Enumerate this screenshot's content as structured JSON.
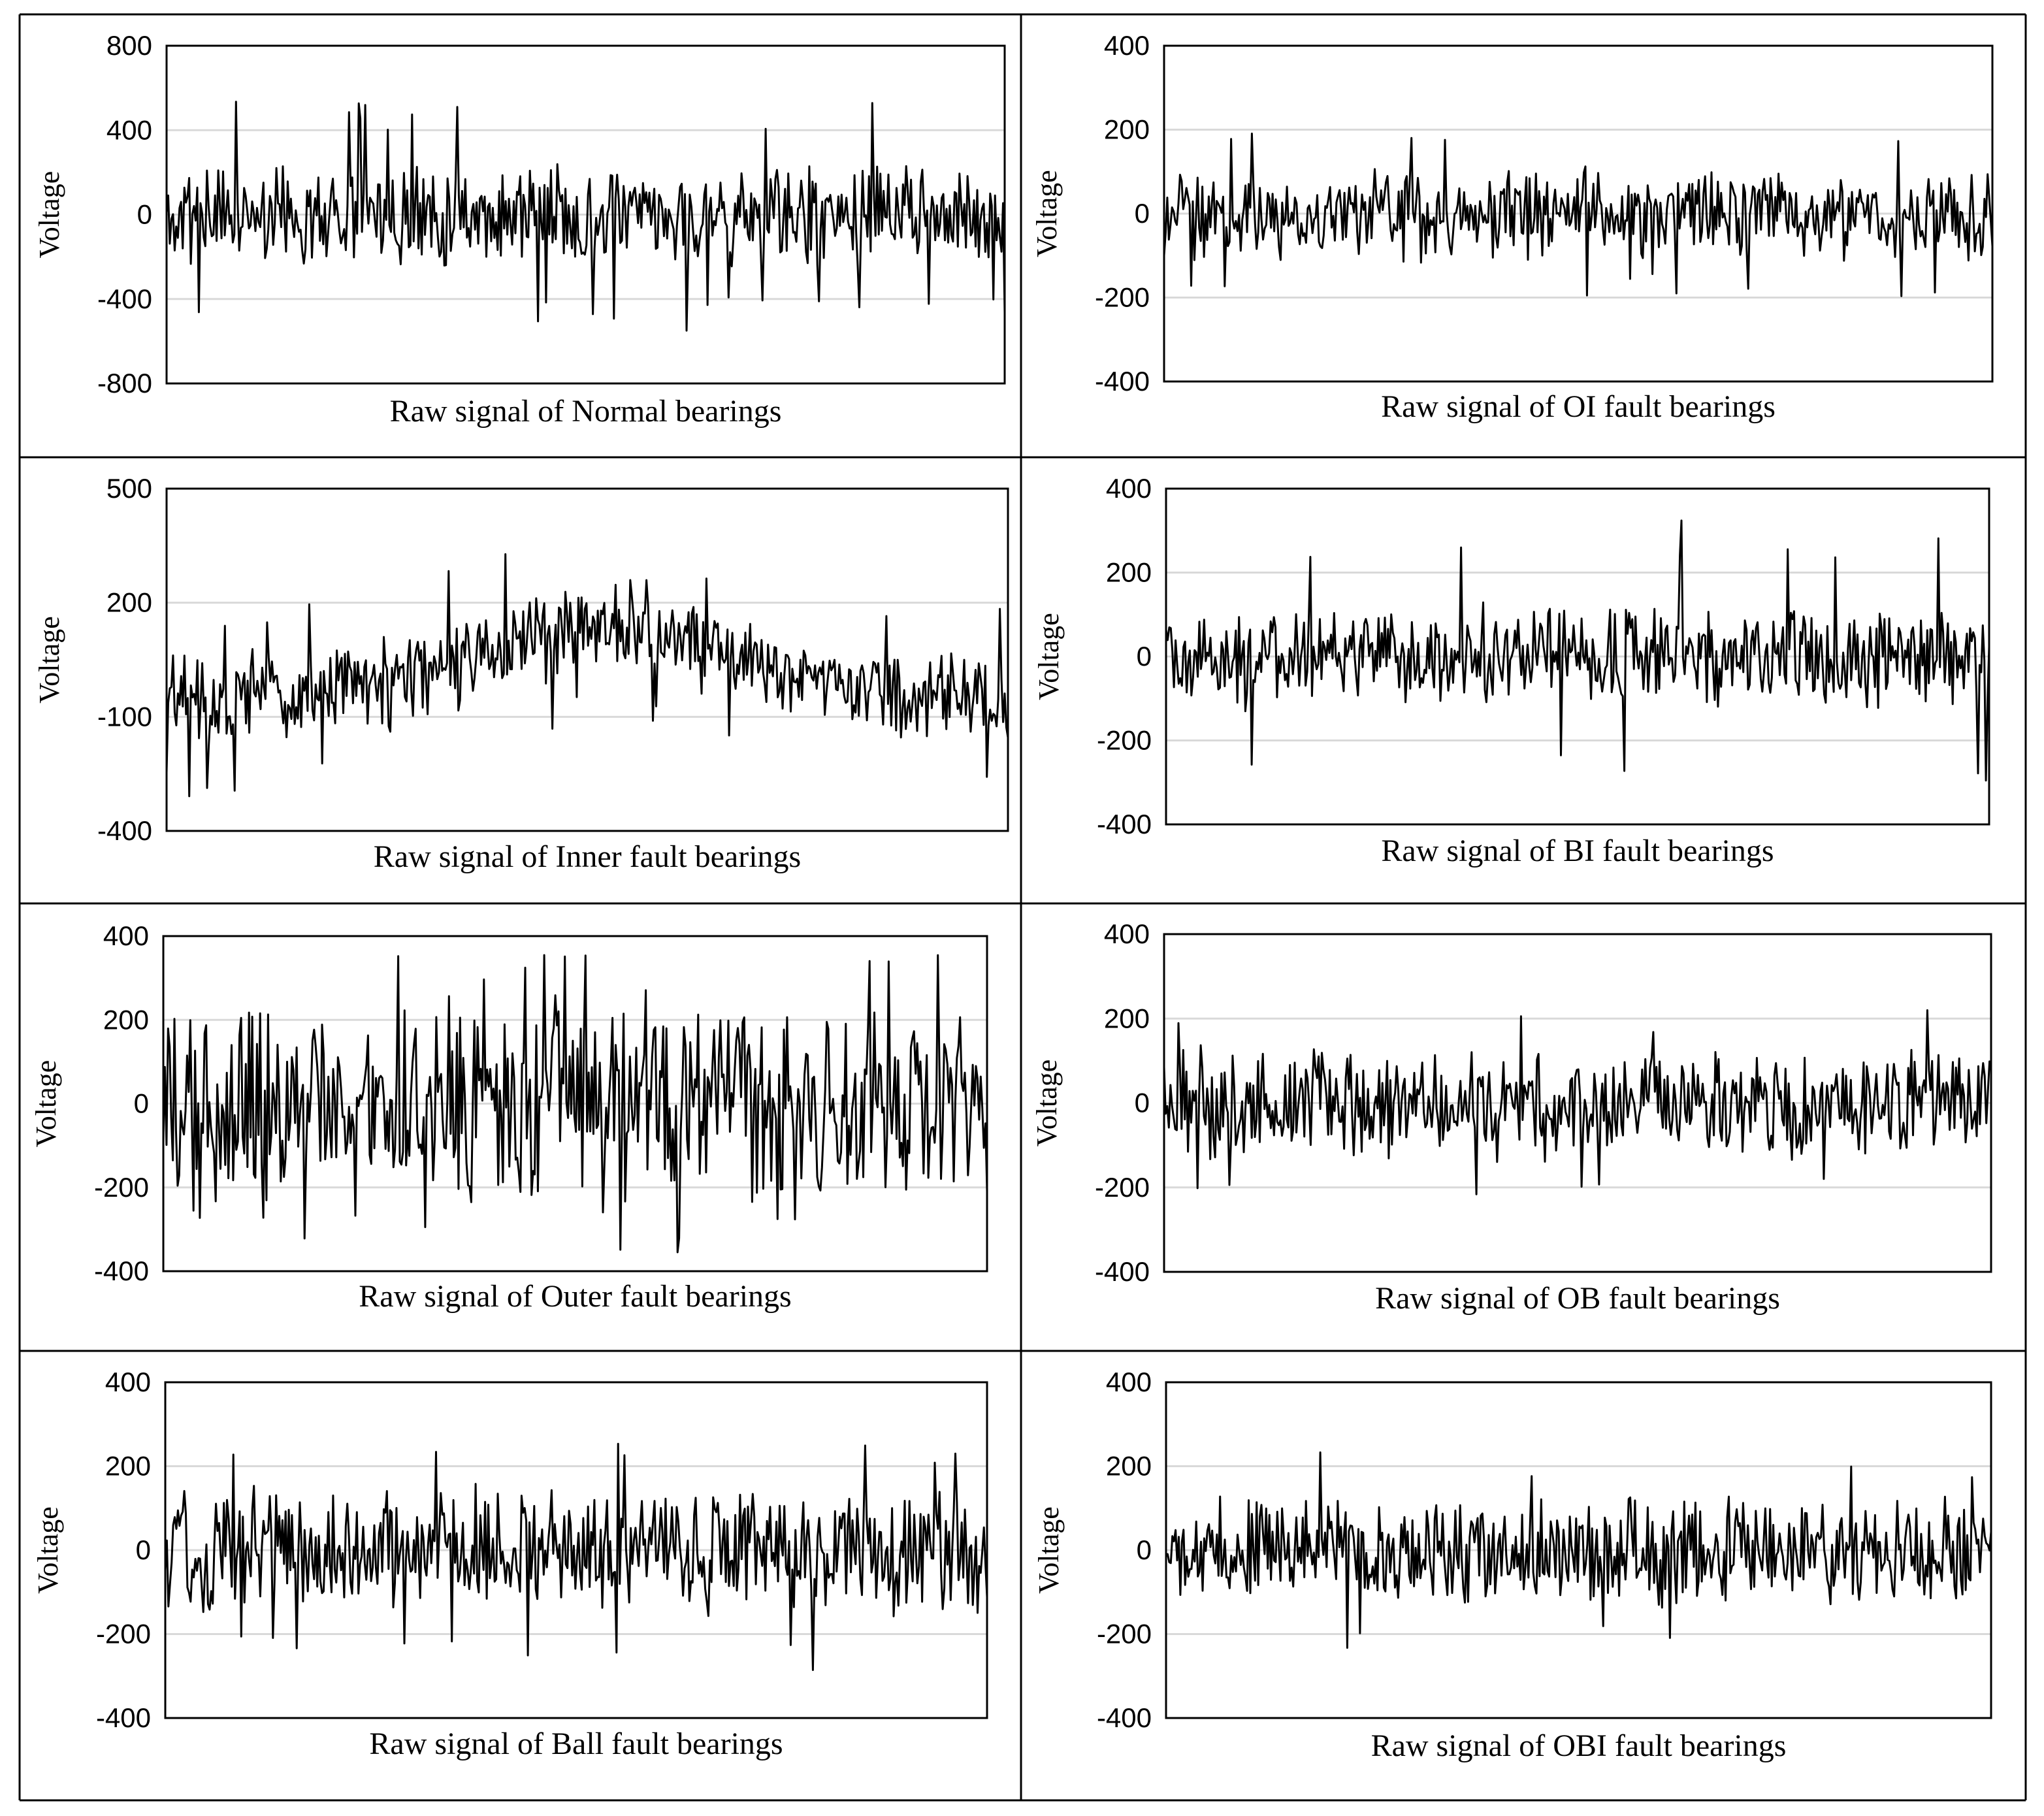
{
  "figure": {
    "background": "#ffffff",
    "line_color": "#000000",
    "grid_color": "#d9d9d9"
  },
  "chart_data": [
    {
      "type": "line",
      "title": "Raw signal of Normal bearings",
      "xlabel": "",
      "ylabel": "Voltage",
      "ylim": [
        -800,
        800
      ],
      "yticks": [
        -800,
        -400,
        0,
        400,
        800
      ],
      "ytick_labels": [
        "-800",
        "-400",
        "0",
        "400",
        "800"
      ],
      "grid": true,
      "n_points": 520,
      "amplitude": 170,
      "spikes": 28,
      "spike_amp": 560,
      "trend": "flat",
      "seed": 11
    },
    {
      "type": "line",
      "title": "Raw signal of OI fault bearings",
      "xlabel": "",
      "ylabel": "Voltage",
      "ylim": [
        -400,
        400
      ],
      "yticks": [
        -400,
        -200,
        0,
        200,
        400
      ],
      "ytick_labels": [
        "-400",
        "-200",
        "0",
        "200",
        "400"
      ],
      "grid": true,
      "n_points": 520,
      "amplitude": 80,
      "spikes": 10,
      "spike_amp": 200,
      "trend": "flat",
      "seed": 23
    },
    {
      "type": "line",
      "title": "Raw signal of Inner fault bearings",
      "xlabel": "",
      "ylabel": "Voltage",
      "ylim": [
        -400,
        500
      ],
      "yticks": [
        -400,
        -100,
        200,
        500
      ],
      "ytick_labels": [
        "-400",
        "-100",
        "200",
        "500"
      ],
      "grid": true,
      "n_points": 520,
      "amplitude": 90,
      "spikes": 14,
      "spike_amp": 260,
      "trend": "hump",
      "trend_base": -50,
      "trend_peak": 140,
      "seed": 37
    },
    {
      "type": "line",
      "title": "Raw signal of BI fault bearings",
      "xlabel": "",
      "ylabel": "Voltage",
      "ylim": [
        -400,
        400
      ],
      "yticks": [
        -400,
        -200,
        0,
        200,
        400
      ],
      "ytick_labels": [
        "-400",
        "-200",
        "0",
        "200",
        "400"
      ],
      "grid": true,
      "n_points": 520,
      "amplitude": 90,
      "spikes": 16,
      "spike_amp": 330,
      "trend": "flat",
      "seed": 41
    },
    {
      "type": "line",
      "title": "Raw signal of Outer fault bearings",
      "xlabel": "",
      "ylabel": "Voltage",
      "ylim": [
        -400,
        400
      ],
      "yticks": [
        -400,
        -200,
        0,
        200,
        400
      ],
      "ytick_labels": [
        "-400",
        "-200",
        "0",
        "200",
        "400"
      ],
      "grid": true,
      "n_points": 520,
      "amplitude": 170,
      "spikes": 18,
      "spike_amp": 360,
      "trend": "flat",
      "seed": 53
    },
    {
      "type": "line",
      "title": "Raw signal of OB fault bearings",
      "xlabel": "",
      "ylabel": "Voltage",
      "ylim": [
        -400,
        400
      ],
      "yticks": [
        -400,
        -200,
        0,
        200,
        400
      ],
      "ytick_labels": [
        "-400",
        "-200",
        "0",
        "200",
        "400"
      ],
      "grid": true,
      "n_points": 520,
      "amplitude": 95,
      "spikes": 10,
      "spike_amp": 220,
      "trend": "flat",
      "seed": 67
    },
    {
      "type": "line",
      "title": "Raw signal of Ball fault bearings",
      "xlabel": "",
      "ylabel": "Voltage",
      "ylim": [
        -400,
        400
      ],
      "yticks": [
        -400,
        -200,
        0,
        200,
        400
      ],
      "ytick_labels": [
        "-400",
        "-200",
        "0",
        "200",
        "400"
      ],
      "grid": true,
      "n_points": 520,
      "amplitude": 110,
      "spikes": 12,
      "spike_amp": 290,
      "trend": "flat",
      "seed": 79
    },
    {
      "type": "line",
      "title": "Raw signal of OBI fault bearings",
      "xlabel": "",
      "ylabel": "Voltage",
      "ylim": [
        -400,
        400
      ],
      "yticks": [
        -400,
        -200,
        0,
        200,
        400
      ],
      "ytick_labels": [
        "-400",
        "-200",
        "0",
        "200",
        "400"
      ],
      "grid": true,
      "n_points": 520,
      "amplitude": 95,
      "spikes": 10,
      "spike_amp": 240,
      "trend": "flat",
      "seed": 97
    }
  ]
}
